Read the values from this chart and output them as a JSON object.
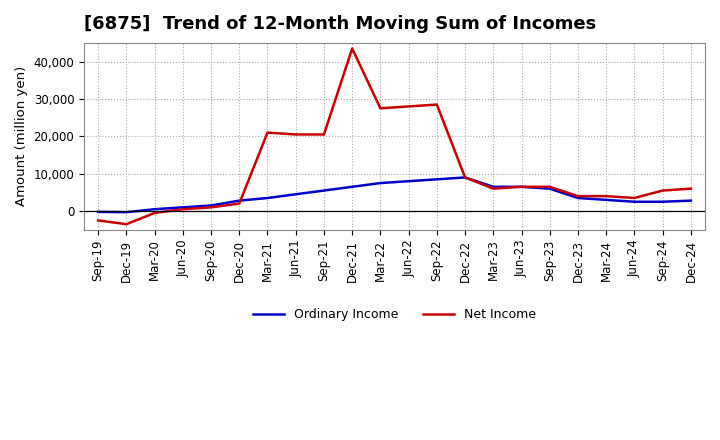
{
  "title": "[6875]  Trend of 12-Month Moving Sum of Incomes",
  "ylabel": "Amount (million yen)",
  "x_labels": [
    "Sep-19",
    "Dec-19",
    "Mar-20",
    "Jun-20",
    "Sep-20",
    "Dec-20",
    "Mar-21",
    "Jun-21",
    "Sep-21",
    "Dec-21",
    "Mar-22",
    "Jun-22",
    "Sep-22",
    "Dec-22",
    "Mar-23",
    "Jun-23",
    "Sep-23",
    "Dec-23",
    "Mar-24",
    "Jun-24",
    "Sep-24",
    "Dec-24"
  ],
  "ordinary_income": [
    -200,
    -300,
    500,
    1000,
    1500,
    2800,
    3500,
    4500,
    5500,
    6500,
    7500,
    8000,
    8500,
    9000,
    6500,
    6500,
    6000,
    3500,
    3000,
    2500,
    2500,
    2800
  ],
  "net_income": [
    -2500,
    -3500,
    -500,
    500,
    1000,
    2000,
    21000,
    20500,
    20500,
    43500,
    27500,
    28000,
    28500,
    9000,
    6000,
    6500,
    6500,
    4000,
    4000,
    3500,
    5500,
    6000
  ],
  "ordinary_color": "#0000cc",
  "net_color": "#cc0000",
  "ylim": [
    -5000,
    45000
  ],
  "yticks": [
    0,
    10000,
    20000,
    30000,
    40000
  ],
  "background_color": "#ffffff",
  "grid_color": "#aaaaaa",
  "line_width": 1.8,
  "legend_ordinary": "Ordinary Income",
  "legend_net": "Net Income",
  "title_fontsize": 13,
  "axis_fontsize": 8.5,
  "legend_fontsize": 9
}
